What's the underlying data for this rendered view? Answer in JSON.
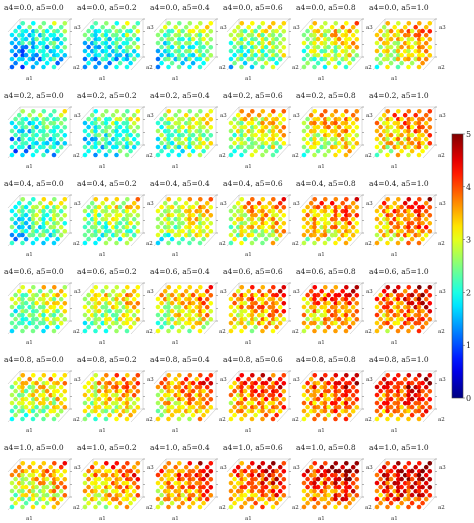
{
  "chart_data": {
    "type": "scatter",
    "variant": "3d-scatter-grid",
    "grid_rows": 6,
    "grid_cols": 6,
    "panel_titles": [
      [
        "a4=0.0, a5=0.0",
        "a4=0.0, a5=0.2",
        "a4=0.0, a5=0.4",
        "a4=0.0, a5=0.6",
        "a4=0.0, a5=0.8",
        "a4=0.0, a5=1.0"
      ],
      [
        "a4=0.2, a5=0.0",
        "a4=0.2, a5=0.2",
        "a4=0.2, a5=0.4",
        "a4=0.2, a5=0.6",
        "a4=0.2, a5=0.8",
        "a4=0.2, a5=1.0"
      ],
      [
        "a4=0.4, a5=0.0",
        "a4=0.4, a5=0.2",
        "a4=0.4, a5=0.4",
        "a4=0.4, a5=0.6",
        "a4=0.4, a5=0.8",
        "a4=0.4, a5=1.0"
      ],
      [
        "a4=0.6, a5=0.0",
        "a4=0.6, a5=0.2",
        "a4=0.6, a5=0.4",
        "a4=0.6, a5=0.6",
        "a4=0.6, a5=0.8",
        "a4=0.6, a5=1.0"
      ],
      [
        "a4=0.8, a5=0.0",
        "a4=0.8, a5=0.2",
        "a4=0.8, a5=0.4",
        "a4=0.8, a5=0.6",
        "a4=0.8, a5=0.8",
        "a4=0.8, a5=1.0"
      ],
      [
        "a4=1.0, a5=0.0",
        "a4=1.0, a5=0.2",
        "a4=1.0, a5=0.4",
        "a4=1.0, a5=0.6",
        "a4=1.0, a5=0.8",
        "a4=1.0, a5=1.0"
      ]
    ],
    "panel_mean_values": [
      [
        1.8,
        2.0,
        2.3,
        2.6,
        2.9,
        3.2
      ],
      [
        2.0,
        2.3,
        2.6,
        2.9,
        3.2,
        3.5
      ],
      [
        2.3,
        2.6,
        2.9,
        3.2,
        3.5,
        3.7
      ],
      [
        2.6,
        2.9,
        3.2,
        3.5,
        3.7,
        3.9
      ],
      [
        2.9,
        3.2,
        3.5,
        3.7,
        3.9,
        4.1
      ],
      [
        3.2,
        3.5,
        3.7,
        3.9,
        4.1,
        4.3
      ]
    ],
    "axis_labels": {
      "x": "a1",
      "y": "a2",
      "z": "a3"
    },
    "colorbar": {
      "colormap": "jet",
      "range": [
        0,
        5
      ],
      "tick_labels": [
        "0",
        "1",
        "2",
        "3",
        "4",
        "5"
      ]
    },
    "grid": false
  }
}
